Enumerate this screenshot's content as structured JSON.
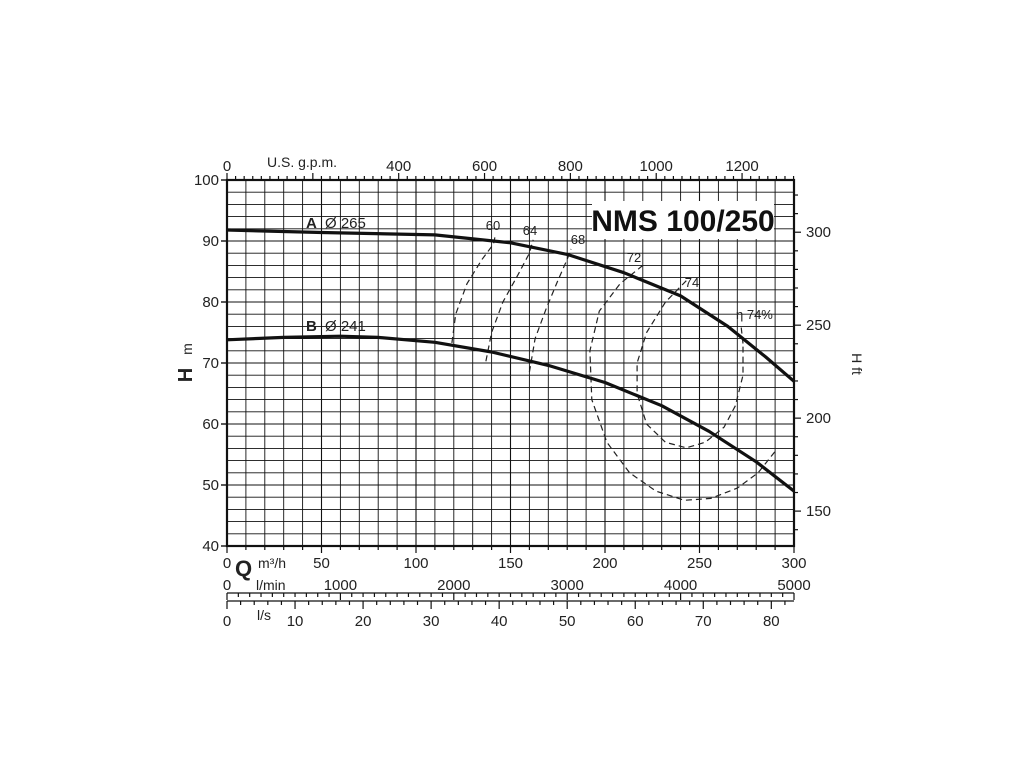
{
  "chart_data": {
    "type": "line",
    "title": "NMS 100/250",
    "xlabel": "Q",
    "ylabel": "H",
    "y_unit": "m",
    "y2_label": "H ft",
    "x_unit": "m³/h",
    "xlim": [
      0,
      300
    ],
    "ylim": [
      40,
      100
    ],
    "grid": true,
    "x_ticks": [
      "0",
      "50",
      "100",
      "150",
      "200",
      "250",
      "300"
    ],
    "y_ticks": [
      "40",
      "50",
      "60",
      "70",
      "80",
      "90",
      "100"
    ],
    "x_ticks_num": [
      0,
      50,
      100,
      150,
      200,
      250,
      300
    ],
    "y_ticks_num": [
      40,
      50,
      60,
      70,
      80,
      90,
      100
    ],
    "top_axis": {
      "label": "U.S. g.p.m.",
      "factor_to_m3h": 0.2271,
      "ticks": [
        {
          "value": 0,
          "label": "0"
        },
        {
          "value": 400,
          "label": "400"
        },
        {
          "value": 600,
          "label": "600"
        },
        {
          "value": 800,
          "label": "800"
        },
        {
          "value": 1000,
          "label": "1000"
        },
        {
          "value": 1200,
          "label": "1200"
        }
      ]
    },
    "right_axis": {
      "label": "H ft",
      "factor_to_m": 0.3048,
      "ticks": [
        {
          "value": 150,
          "label": "150"
        },
        {
          "value": 200,
          "label": "200"
        },
        {
          "value": 250,
          "label": "250"
        },
        {
          "value": 300,
          "label": "300"
        }
      ]
    },
    "lmin_axis": {
      "label": "l/min",
      "factor_to_m3h": 0.06,
      "ticks": [
        {
          "value": 0,
          "label": "0"
        },
        {
          "value": 1000,
          "label": "1000"
        },
        {
          "value": 2000,
          "label": "2000"
        },
        {
          "value": 3000,
          "label": "3000"
        },
        {
          "value": 4000,
          "label": "4000"
        },
        {
          "value": 5000,
          "label": "5000"
        }
      ]
    },
    "ls_axis": {
      "label": "l/s",
      "factor_to_m3h": 3.6,
      "ticks": [
        {
          "value": 0,
          "label": "0"
        },
        {
          "value": 10,
          "label": "10"
        },
        {
          "value": 20,
          "label": "20"
        },
        {
          "value": 30,
          "label": "30"
        },
        {
          "value": 40,
          "label": "40"
        },
        {
          "value": 50,
          "label": "50"
        },
        {
          "value": 60,
          "label": "60"
        },
        {
          "value": 70,
          "label": "70"
        },
        {
          "value": 80,
          "label": "80"
        }
      ]
    },
    "series": [
      {
        "name": "A Ø 265",
        "x": [
          0,
          50,
          110,
          150,
          180,
          210,
          240,
          265,
          285,
          300
        ],
        "y": [
          91.8,
          91.4,
          91.0,
          89.7,
          87.8,
          84.8,
          81.0,
          76.0,
          71.0,
          67.0
        ]
      },
      {
        "name": "B Ø 241",
        "x": [
          0,
          30,
          60,
          80,
          110,
          140,
          170,
          200,
          230,
          255,
          280,
          300
        ],
        "y": [
          73.8,
          74.2,
          74.4,
          74.2,
          73.4,
          71.8,
          69.6,
          66.8,
          63.0,
          58.8,
          53.8,
          49.0
        ]
      }
    ],
    "efficiency_contours": [
      {
        "label": "60",
        "x": [
          119,
          121,
          127,
          135,
          141,
          142
        ],
        "y": [
          73.3,
          78.0,
          83.0,
          87.0,
          89.5,
          91.0
        ]
      },
      {
        "label": "64",
        "x": [
          137,
          140,
          146,
          154,
          160,
          162
        ],
        "y": [
          70.3,
          75.0,
          80.0,
          84.5,
          88.0,
          90.2
        ]
      },
      {
        "label": "68",
        "x": [
          160,
          163,
          169,
          175,
          180,
          182
        ],
        "y": [
          68.5,
          74.0,
          79.0,
          83.5,
          87.0,
          88.7
        ]
      },
      {
        "label": "72",
        "x": [
          220,
          208,
          197,
          192,
          193,
          201,
          213,
          227,
          242,
          256,
          270,
          281,
          290
        ],
        "y": [
          86.0,
          83.0,
          78.5,
          72.0,
          64.0,
          57.0,
          52.0,
          49.0,
          47.5,
          47.8,
          49.5,
          52.0,
          55.5
        ]
      },
      {
        "label": "74",
        "x": [
          243,
          232,
          222,
          217,
          217,
          222,
          232,
          243,
          253,
          263,
          269,
          273,
          273
        ],
        "y": [
          83.5,
          80.0,
          75.0,
          70.0,
          65.0,
          60.0,
          57.0,
          56.1,
          57.0,
          59.5,
          63.0,
          68.0,
          73.2
        ]
      },
      {
        "label": "η 74%",
        "x": [
          273,
          272
        ],
        "y": [
          73.2,
          76.0
        ]
      }
    ],
    "model_title": "NMS 100/250",
    "label_A": "A",
    "label_A_dia": "Ø 265",
    "label_B": "B",
    "label_B_dia": "Ø 241"
  }
}
